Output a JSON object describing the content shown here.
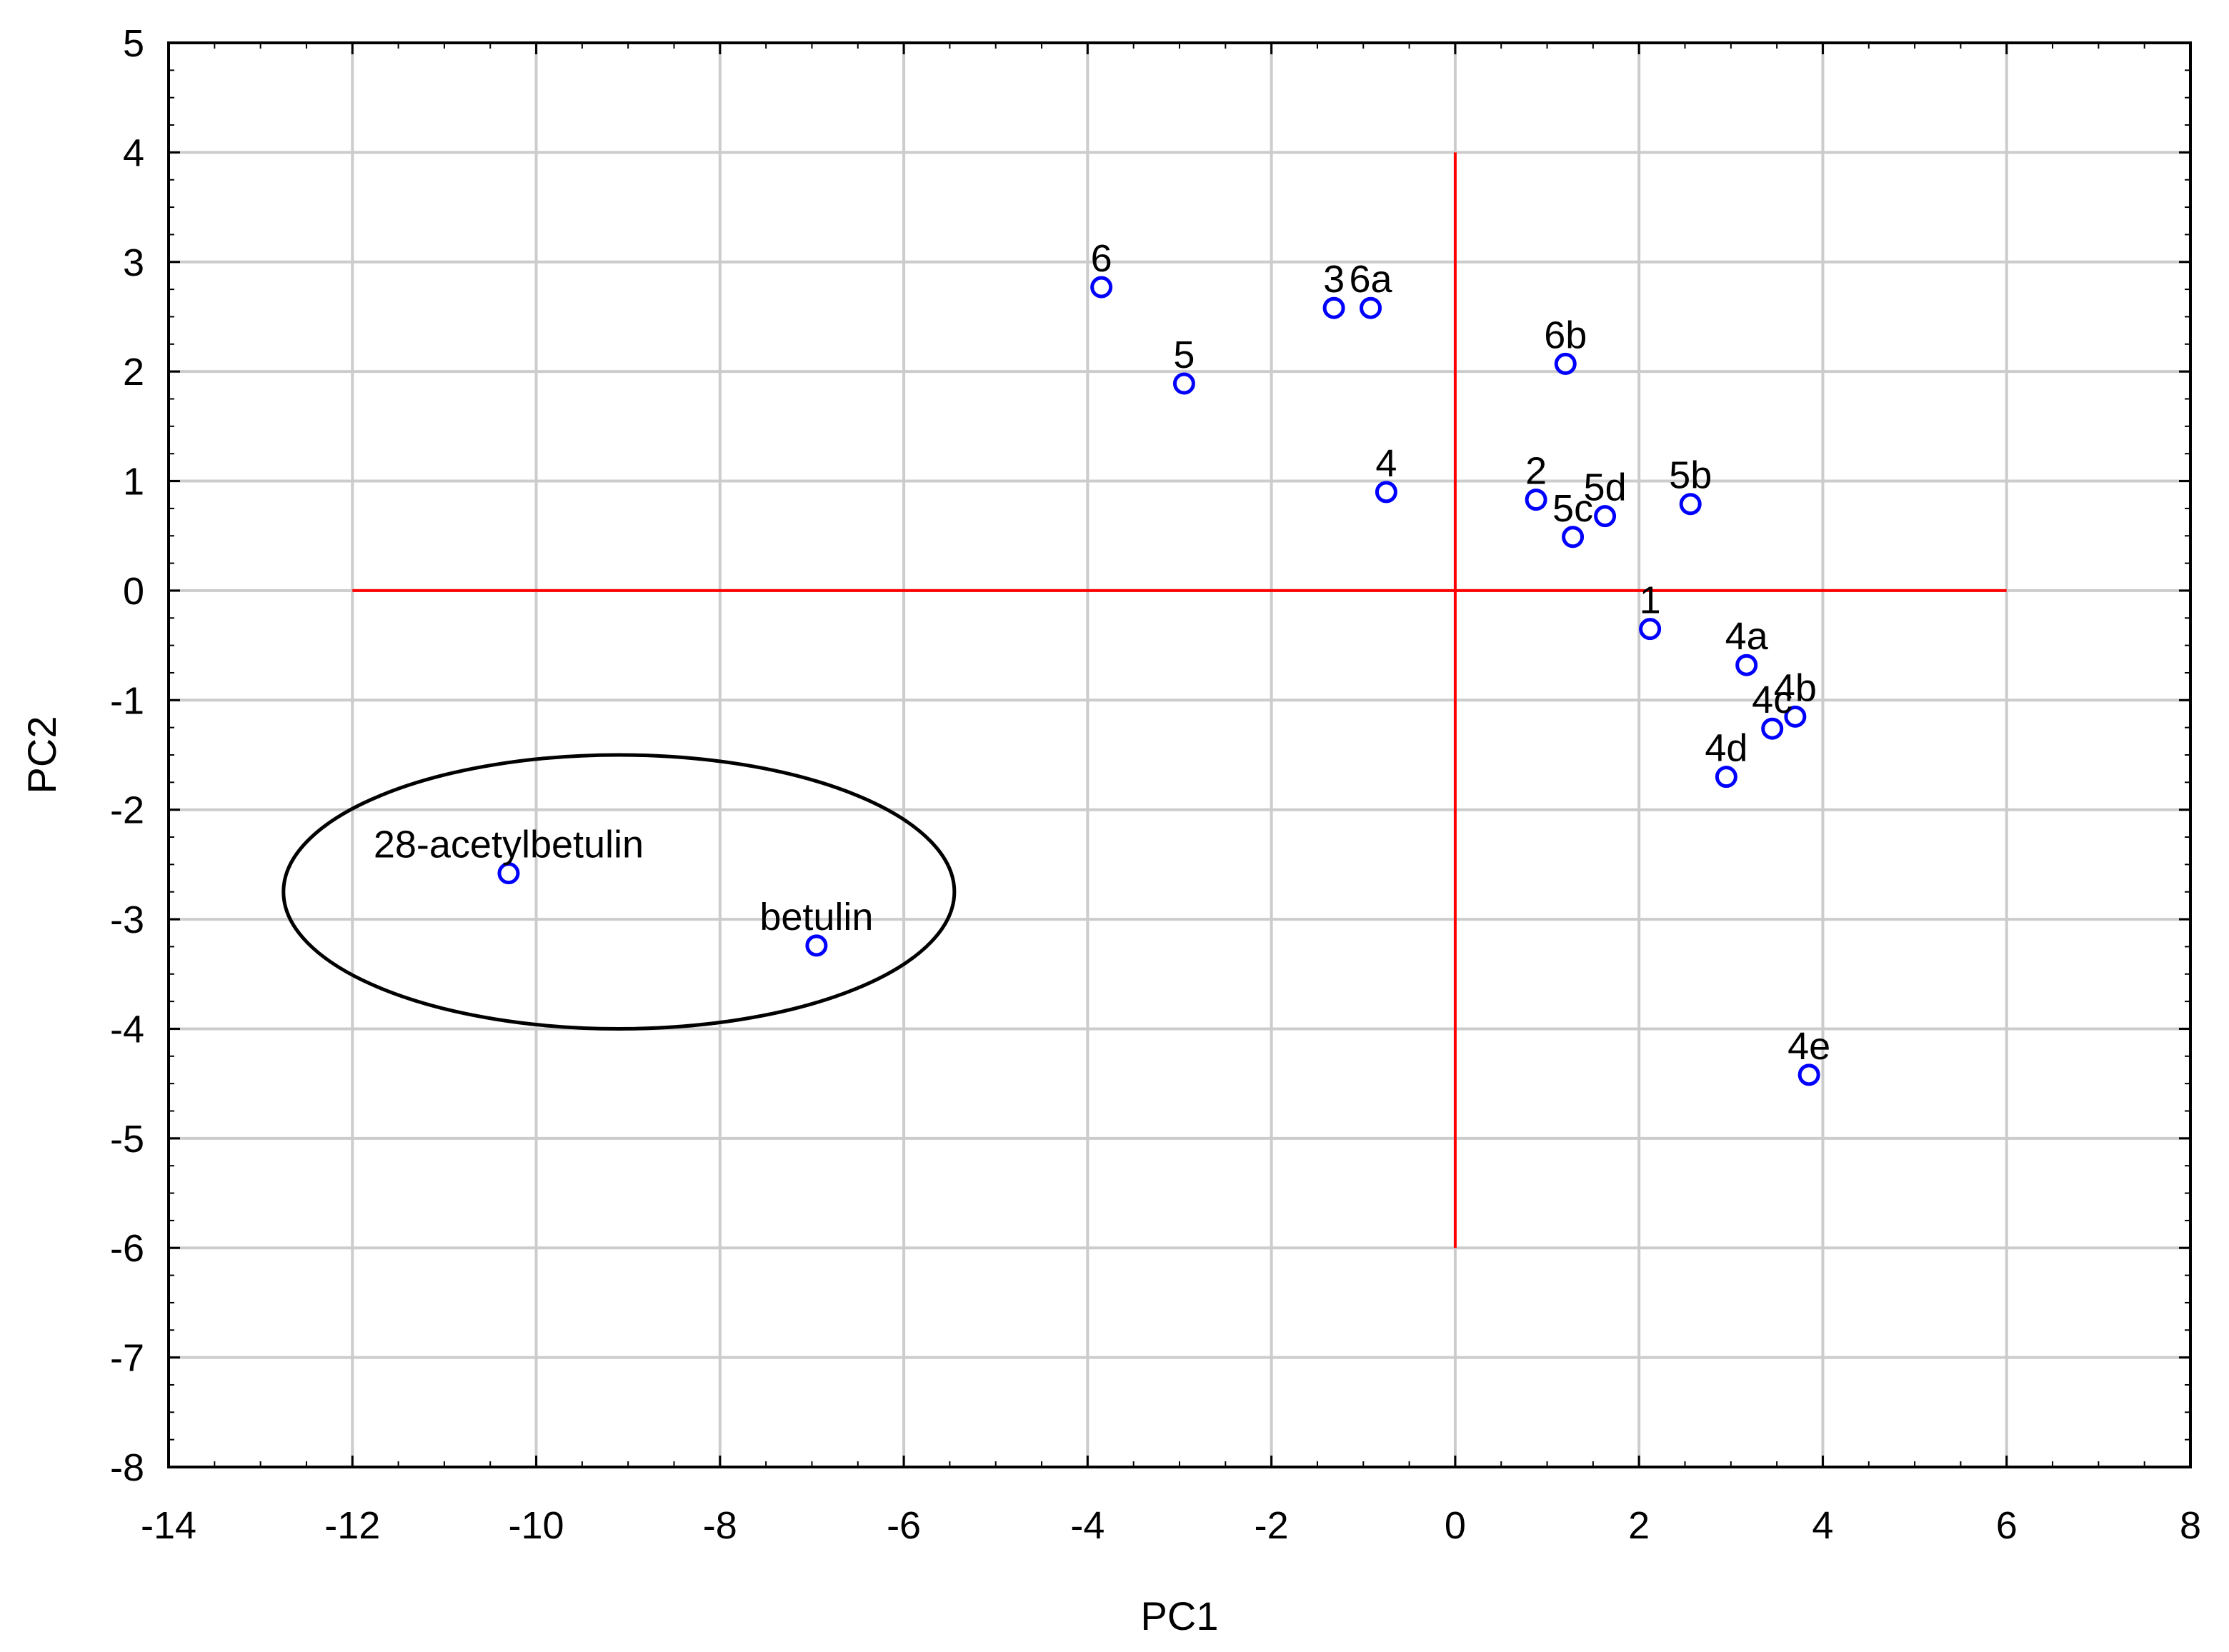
{
  "chart_data": {
    "type": "scatter",
    "xlabel": "PC1",
    "ylabel": "PC2",
    "xlim": [
      -14,
      8
    ],
    "ylim": [
      -8,
      5
    ],
    "x_ticks": [
      "-14",
      "-12",
      "-10",
      "-8",
      "-6",
      "-4",
      "-2",
      "0",
      "2",
      "4",
      "6",
      "8"
    ],
    "y_ticks": [
      "5",
      "4",
      "3",
      "2",
      "1",
      "0",
      "-1",
      "-2",
      "-3",
      "-4",
      "-5",
      "-6",
      "-7",
      "-8"
    ],
    "grid": true,
    "point_color": "#0000ff",
    "reference_line_color": "#ff0000",
    "reference_lines": {
      "horizontal": {
        "y": 0,
        "x_from": -12,
        "x_to": 6
      },
      "vertical": {
        "x": 0,
        "y_from": -6,
        "y_to": 4
      }
    },
    "highlight_ellipse": {
      "center_x": -9.1,
      "center_y": -2.75,
      "half_width_x": 3.65,
      "half_height_y": 1.25
    },
    "points": [
      {
        "label": "6",
        "x": -3.85,
        "y": 2.77
      },
      {
        "label": "5",
        "x": -2.95,
        "y": 1.89
      },
      {
        "label": "3",
        "x": -1.32,
        "y": 2.58
      },
      {
        "label": "6a",
        "x": -0.92,
        "y": 2.58
      },
      {
        "label": "4",
        "x": -0.75,
        "y": 0.9
      },
      {
        "label": "6b",
        "x": 1.2,
        "y": 2.07
      },
      {
        "label": "2",
        "x": 0.88,
        "y": 0.83
      },
      {
        "label": "5c",
        "x": 1.28,
        "y": 0.49
      },
      {
        "label": "5d",
        "x": 1.63,
        "y": 0.68
      },
      {
        "label": "5b",
        "x": 2.56,
        "y": 0.79
      },
      {
        "label": "1",
        "x": 2.12,
        "y": -0.35
      },
      {
        "label": "4a",
        "x": 3.17,
        "y": -0.68
      },
      {
        "label": "4b",
        "x": 3.7,
        "y": -1.15
      },
      {
        "label": "4c",
        "x": 3.45,
        "y": -1.26
      },
      {
        "label": "4d",
        "x": 2.95,
        "y": -1.7
      },
      {
        "label": "4e",
        "x": 3.85,
        "y": -4.42
      },
      {
        "label": "28-acetylbetulin",
        "x": -10.3,
        "y": -2.58
      },
      {
        "label": "betulin",
        "x": -6.95,
        "y": -3.24
      }
    ]
  }
}
